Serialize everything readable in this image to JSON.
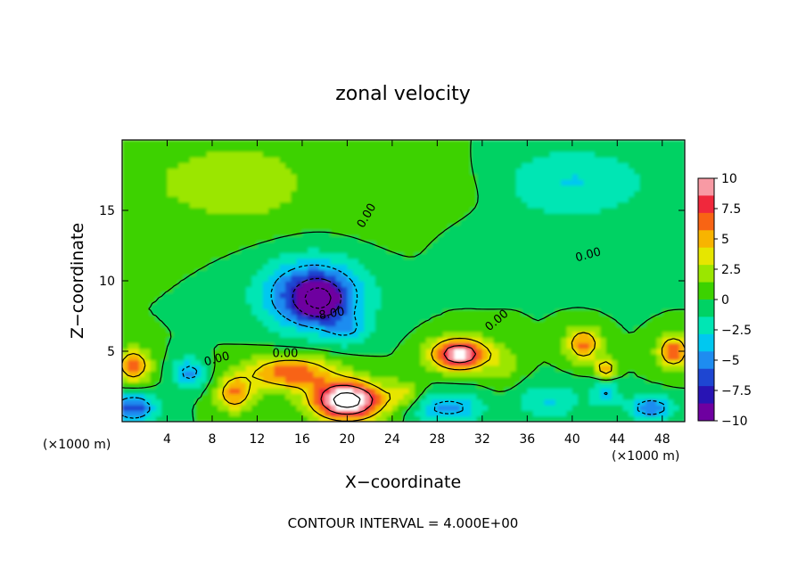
{
  "chart_data": {
    "type": "heatmap",
    "title": "zonal velocity",
    "xlabel": "X−coordinate",
    "ylabel": "Z−coordinate",
    "x_unit_label": "(×1000 m)",
    "z_unit_label": "(×1000 m)",
    "footer": "CONTOUR INTERVAL = 4.000E+00",
    "xlim": [
      0,
      50
    ],
    "ylim": [
      0,
      20
    ],
    "x_ticks": [
      "4",
      "8",
      "12",
      "16",
      "20",
      "24",
      "28",
      "32",
      "36",
      "40",
      "44",
      "48"
    ],
    "y_ticks": [
      "5",
      "10",
      "15"
    ],
    "colorbar": {
      "range": [
        -10,
        10
      ],
      "labels": [
        "10",
        "7.5",
        "5",
        "2.5",
        "0",
        "−2.5",
        "−5",
        "−7.5",
        "−10"
      ],
      "colors": [
        "#f89aa4",
        "#f0283c",
        "#f86414",
        "#f8b400",
        "#e6e600",
        "#9be600",
        "#3cd200",
        "#00d264",
        "#00e6b4",
        "#00c8f0",
        "#1e8cf0",
        "#1e46d2",
        "#2814b4",
        "#6e00a0"
      ]
    },
    "contour_labels": [
      "0.00",
      "0.00",
      "0.00",
      "-8.00",
      "0.00",
      "0.00"
    ],
    "contour_interval": 4.0,
    "background_value": 0,
    "features": [
      {
        "x": 6,
        "z": 17,
        "value": 1.5,
        "sx": 6,
        "sz": 3
      },
      {
        "x": 12,
        "z": 17,
        "value": 1.8,
        "sx": 5,
        "sz": 3
      },
      {
        "x": 26,
        "z": 16,
        "value": 1.2,
        "sx": 8,
        "sz": 3
      },
      {
        "x": 40,
        "z": 17,
        "value": -3.0,
        "sx": 7,
        "sz": 2.5
      },
      {
        "x": 33,
        "z": 13,
        "value": -1.2,
        "sx": 5,
        "sz": 2
      },
      {
        "x": 44,
        "z": 11,
        "value": -1.0,
        "sx": 4,
        "sz": 2
      },
      {
        "x": 17,
        "z": 9,
        "value": -8.0,
        "sx": 4.5,
        "sz": 2.5
      },
      {
        "x": 17.5,
        "z": 8.7,
        "value": -7.0,
        "sx": 1.8,
        "sz": 1.2
      },
      {
        "x": 20,
        "z": 6.5,
        "value": -3.0,
        "sx": 2,
        "sz": 1
      },
      {
        "x": 30,
        "z": 4.8,
        "value": 11.0,
        "sx": 2.5,
        "sz": 1.1
      },
      {
        "x": 20,
        "z": 1.5,
        "value": 14.0,
        "sx": 3,
        "sz": 1.3
      },
      {
        "x": 15,
        "z": 3.5,
        "value": 7.0,
        "sx": 4,
        "sz": 1.2
      },
      {
        "x": 10,
        "z": 2,
        "value": 6.0,
        "sx": 1.6,
        "sz": 1.2
      },
      {
        "x": 1,
        "z": 4,
        "value": 6.5,
        "sx": 1.5,
        "sz": 1.2
      },
      {
        "x": 6,
        "z": 3.5,
        "value": -5.0,
        "sx": 1.5,
        "sz": 1
      },
      {
        "x": 1,
        "z": 1,
        "value": -7.0,
        "sx": 2,
        "sz": 1
      },
      {
        "x": 29,
        "z": 1,
        "value": -5.0,
        "sx": 3,
        "sz": 1
      },
      {
        "x": 38,
        "z": 1.5,
        "value": -3.0,
        "sx": 3,
        "sz": 1.2
      },
      {
        "x": 41,
        "z": 5.5,
        "value": 6.5,
        "sx": 1.5,
        "sz": 1.2
      },
      {
        "x": 43,
        "z": 3.8,
        "value": 6.5,
        "sx": 0.8,
        "sz": 0.6
      },
      {
        "x": 49,
        "z": 5,
        "value": 7.0,
        "sx": 1.4,
        "sz": 1.2
      },
      {
        "x": 43,
        "z": 2,
        "value": -4.0,
        "sx": 1.2,
        "sz": 0.8
      },
      {
        "x": 47,
        "z": 1,
        "value": -6.0,
        "sx": 2,
        "sz": 0.8
      },
      {
        "x": 25,
        "z": 2,
        "value": 3.0,
        "sx": 1.5,
        "sz": 1
      },
      {
        "x": 34,
        "z": 4,
        "value": 2.0,
        "sx": 1.5,
        "sz": 1.5
      }
    ]
  }
}
